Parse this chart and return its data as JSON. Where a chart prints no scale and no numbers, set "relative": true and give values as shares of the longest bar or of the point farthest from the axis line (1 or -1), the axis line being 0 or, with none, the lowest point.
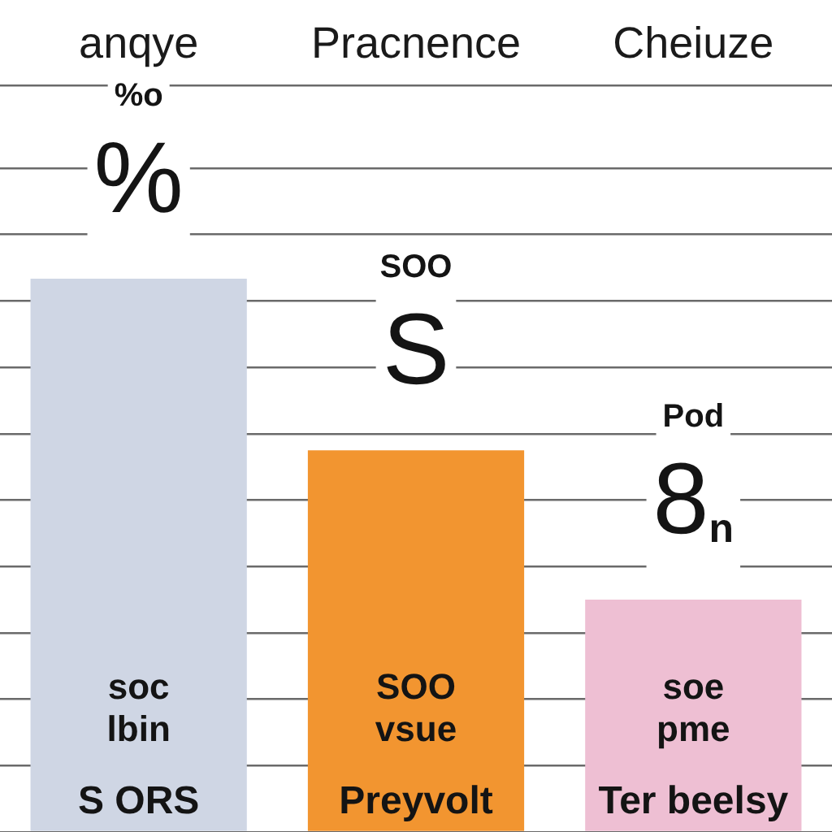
{
  "chart_data": {
    "type": "bar",
    "categories": [
      "anqye",
      "Pracnence",
      "Cheiuze"
    ],
    "values": [
      1,
      0.69,
      0.42
    ],
    "colors": [
      "#cfd6e4",
      "#f29530",
      "#eebfd3"
    ],
    "relative": true,
    "grid": "y",
    "annotations": [
      "%o",
      "SOO",
      "Pod",
      "%",
      "S",
      "8$_{n}$",
      "soc",
      "SOO",
      "soe",
      "lbin",
      "vsue",
      "pme",
      "S ORS",
      "Preyvolt",
      "Ter beelsy"
    ]
  }
}
